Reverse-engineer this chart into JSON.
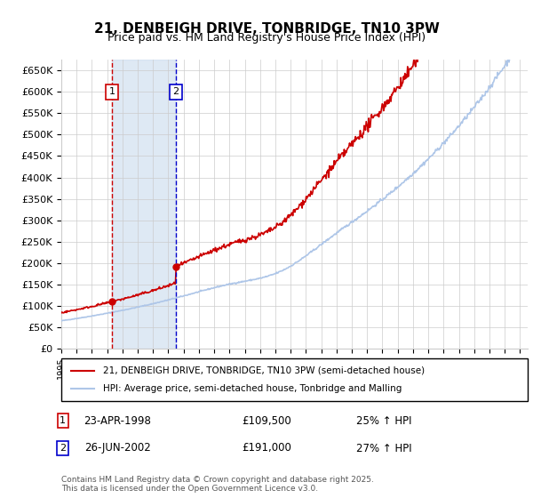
{
  "title": "21, DENBEIGH DRIVE, TONBRIDGE, TN10 3PW",
  "subtitle": "Price paid vs. HM Land Registry's House Price Index (HPI)",
  "ylabel": "",
  "ylim": [
    0,
    675000
  ],
  "yticks": [
    0,
    50000,
    100000,
    150000,
    200000,
    250000,
    300000,
    350000,
    400000,
    450000,
    500000,
    550000,
    600000,
    650000
  ],
  "xlim_start": 1995.0,
  "xlim_end": 2025.5,
  "sale1_date": 1998.31,
  "sale1_price": 109500,
  "sale1_label": "1",
  "sale2_date": 2002.49,
  "sale2_price": 191000,
  "sale2_label": "2",
  "legend_line1": "21, DENBEIGH DRIVE, TONBRIDGE, TN10 3PW (semi-detached house)",
  "legend_line2": "HPI: Average price, semi-detached house, Tonbridge and Malling",
  "table_row1": [
    "1",
    "23-APR-1998",
    "£109,500",
    "25% ↑ HPI"
  ],
  "table_row2": [
    "2",
    "26-JUN-2002",
    "£191,000",
    "27% ↑ HPI"
  ],
  "footer": "Contains HM Land Registry data © Crown copyright and database right 2025.\nThis data is licensed under the Open Government Licence v3.0.",
  "hpi_color": "#aec6e8",
  "price_color": "#cc0000",
  "vline_color_1": "#cc0000",
  "vline_color_2": "#0000cc",
  "shade_color": "#d0e0f0",
  "bg_color": "#ffffff",
  "grid_color": "#cccccc"
}
